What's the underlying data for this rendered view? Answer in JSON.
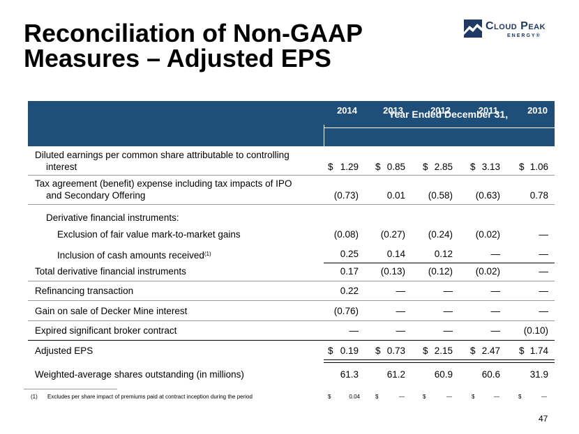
{
  "title_line1": "Reconciliation of Non-GAAP",
  "title_line2": "Measures – Adjusted EPS",
  "logo": {
    "name": "Cloud Peak",
    "sub": "ENERGY®",
    "color": "#1f3864"
  },
  "table": {
    "period_header": "Year Ended December 31,",
    "years": [
      "2014",
      "2013",
      "2012",
      "2011",
      "2010"
    ],
    "header_color": "#1f4e79",
    "rows": [
      {
        "label_l1": "Diluted earnings per common share attributable to controlling",
        "label_l2": "interest",
        "dollar": "$",
        "values": [
          "1.29",
          "0.85",
          "2.85",
          "3.13",
          "1.06"
        ]
      },
      {
        "label_l1": "Tax agreement (benefit) expense including tax impacts of IPO",
        "label_l2": "and Secondary Offering",
        "values": [
          "(0.73)",
          "0.01",
          "(0.58)",
          "(0.63)",
          "0.78"
        ]
      },
      {
        "label": "Derivative financial instruments:"
      },
      {
        "label": "Exclusion of fair value mark-to-market gains",
        "values": [
          "(0.08)",
          "(0.27)",
          "(0.24)",
          "(0.02)",
          "—"
        ]
      },
      {
        "label": "Inclusion of cash amounts received",
        "sup": "(1)",
        "values": [
          "0.25",
          "0.14",
          "0.12",
          "—",
          "—"
        ]
      },
      {
        "label": "Total derivative financial instruments",
        "values": [
          "0.17",
          "(0.13)",
          "(0.12)",
          "(0.02)",
          "—"
        ]
      },
      {
        "label": "Refinancing transaction",
        "values": [
          "0.22",
          "—",
          "—",
          "—",
          "—"
        ]
      },
      {
        "label": "Gain on sale of Decker Mine interest",
        "values": [
          "(0.76)",
          "—",
          "—",
          "—",
          "—"
        ]
      },
      {
        "label": "Expired significant broker contract",
        "values": [
          "—",
          "—",
          "—",
          "—",
          "(0.10)"
        ]
      },
      {
        "label": "Adjusted EPS",
        "dollar": "$",
        "values": [
          "0.19",
          "0.73",
          "2.15",
          "2.47",
          "1.74"
        ]
      },
      {
        "label": "Weighted-average shares outstanding (in millions)",
        "values": [
          "61.3",
          "61.2",
          "60.9",
          "60.6",
          "31.9"
        ]
      }
    ]
  },
  "footnote": {
    "marker": "(1)",
    "text": "Excludes per share impact of premiums paid at contract inception during the period",
    "dollar": "$",
    "values": [
      "0.04",
      "—",
      "—",
      "—",
      "—"
    ]
  },
  "page_number": "47"
}
